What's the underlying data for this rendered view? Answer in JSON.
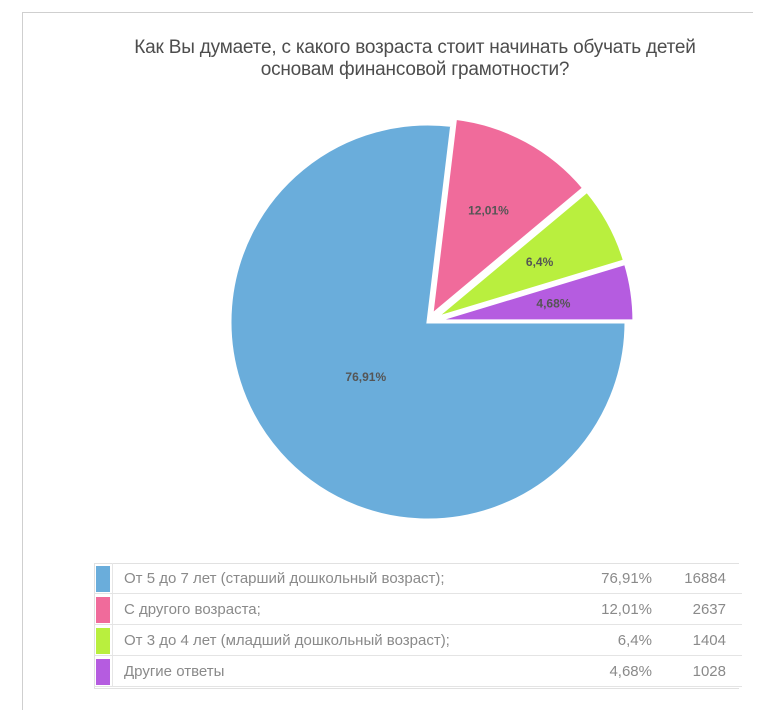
{
  "chart_data": {
    "type": "pie",
    "title_lines": [
      "Как Вы думаете, с какого возраста стоит начинать обучать детей",
      "основам финансовой грамотности?"
    ],
    "slices": [
      {
        "label": "От 5 до 7 лет (старший дошкольный возраст);",
        "percent_label": "76,91%",
        "count": "16884",
        "value": 76.91,
        "color": "#6aaddb",
        "pie_label": "76,91%"
      },
      {
        "label": "С другого возраста;",
        "percent_label": "12,01%",
        "count": "2637",
        "value": 12.01,
        "color": "#f06b9b",
        "pie_label": "12,01%"
      },
      {
        "label": "От 3 до 4 лет (младший дошкольный возраст);",
        "percent_label": "6,4%",
        "count": "1404",
        "value": 6.4,
        "color": "#b9ef3e",
        "pie_label": "6,4%"
      },
      {
        "label": "Другие ответы",
        "percent_label": "4,68%",
        "count": "1028",
        "value": 4.68,
        "color": "#b55ce0",
        "pie_label": "4,68%"
      }
    ],
    "legend_placement": "bottom"
  }
}
